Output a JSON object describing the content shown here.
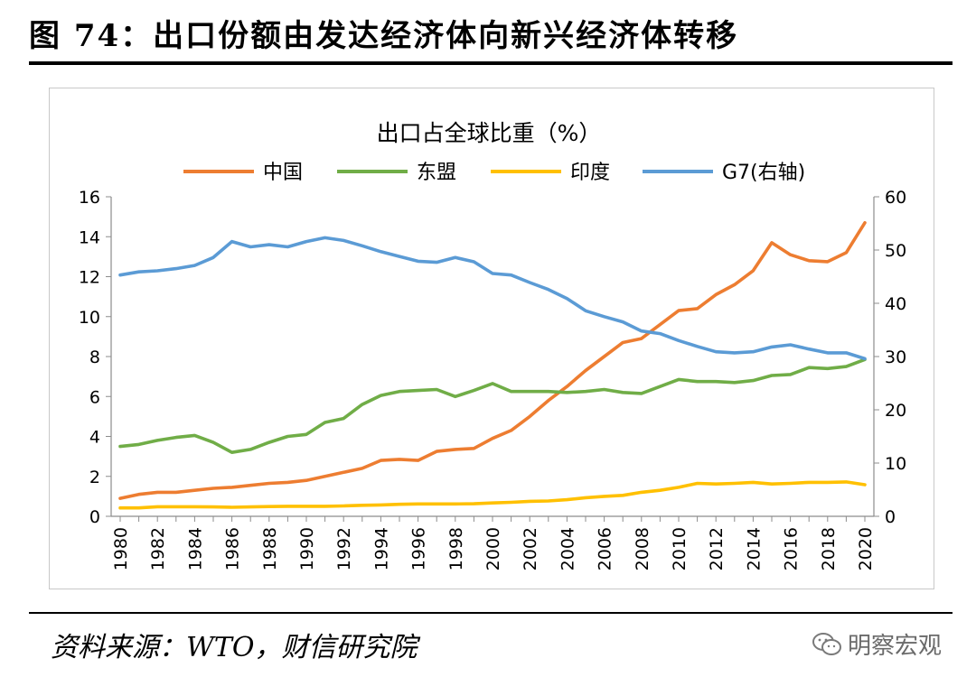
{
  "figure": {
    "title": "图 74：出口份额由发达经济体向新兴经济体转移",
    "source": "资料来源：WTO，财信研究院",
    "watermark": "明察宏观",
    "watermark_icon": "wechat-icon"
  },
  "chart_data": {
    "type": "line",
    "title": "出口占全球比重（%）",
    "legend_position": "top",
    "grid": false,
    "x": [
      1980,
      1981,
      1982,
      1983,
      1984,
      1985,
      1986,
      1987,
      1988,
      1989,
      1990,
      1991,
      1992,
      1993,
      1994,
      1995,
      1996,
      1997,
      1998,
      1999,
      2000,
      2001,
      2002,
      2003,
      2004,
      2005,
      2006,
      2007,
      2008,
      2009,
      2010,
      2011,
      2012,
      2013,
      2014,
      2015,
      2016,
      2017,
      2018,
      2019,
      2020
    ],
    "x_tick_labels": [
      "1980",
      "1982",
      "1984",
      "1986",
      "1988",
      "1990",
      "1992",
      "1994",
      "1996",
      "1998",
      "2000",
      "2002",
      "2004",
      "2006",
      "2008",
      "2010",
      "2012",
      "2014",
      "2016",
      "2018",
      "2020"
    ],
    "y_left": {
      "range": [
        0,
        16
      ],
      "ticks": [
        "0",
        "2",
        "4",
        "6",
        "8",
        "10",
        "12",
        "14",
        "16"
      ]
    },
    "y_right": {
      "range": [
        0,
        60
      ],
      "ticks": [
        "0",
        "10",
        "20",
        "30",
        "40",
        "50",
        "60"
      ]
    },
    "series": [
      {
        "name": "中国",
        "axis": "left",
        "color": "#ED7D31",
        "values": [
          0.9,
          1.1,
          1.2,
          1.2,
          1.3,
          1.4,
          1.45,
          1.55,
          1.65,
          1.7,
          1.8,
          2.0,
          2.2,
          2.4,
          2.8,
          2.85,
          2.8,
          3.25,
          3.35,
          3.4,
          3.9,
          4.3,
          5.0,
          5.8,
          6.5,
          7.3,
          8.0,
          8.7,
          8.9,
          9.6,
          10.3,
          10.4,
          11.1,
          11.6,
          12.3,
          13.7,
          13.1,
          12.8,
          12.75,
          13.2,
          14.7
        ]
      },
      {
        "name": "东盟",
        "axis": "left",
        "color": "#70AD47",
        "values": [
          3.5,
          3.6,
          3.8,
          3.95,
          4.05,
          3.7,
          3.2,
          3.35,
          3.7,
          4.0,
          4.1,
          4.7,
          4.9,
          5.6,
          6.05,
          6.25,
          6.3,
          6.35,
          6.0,
          6.3,
          6.65,
          6.25,
          6.25,
          6.25,
          6.2,
          6.25,
          6.35,
          6.2,
          6.15,
          6.5,
          6.85,
          6.75,
          6.75,
          6.7,
          6.8,
          7.05,
          7.1,
          7.45,
          7.4,
          7.5,
          7.85
        ]
      },
      {
        "name": "印度",
        "axis": "left",
        "color": "#FFC000",
        "values": [
          0.42,
          0.42,
          0.48,
          0.48,
          0.48,
          0.47,
          0.45,
          0.47,
          0.49,
          0.5,
          0.5,
          0.5,
          0.52,
          0.55,
          0.57,
          0.6,
          0.62,
          0.62,
          0.62,
          0.63,
          0.67,
          0.7,
          0.75,
          0.77,
          0.83,
          0.93,
          1.0,
          1.05,
          1.2,
          1.3,
          1.45,
          1.65,
          1.62,
          1.65,
          1.7,
          1.62,
          1.65,
          1.7,
          1.7,
          1.72,
          1.58
        ]
      },
      {
        "name": "G7(右轴)",
        "axis": "right",
        "color": "#5B9BD5",
        "values": [
          45.3,
          45.9,
          46.1,
          46.5,
          47.1,
          48.6,
          51.6,
          50.6,
          51.0,
          50.6,
          51.6,
          52.3,
          51.8,
          50.8,
          49.7,
          48.8,
          47.9,
          47.7,
          48.6,
          47.8,
          45.6,
          45.3,
          43.9,
          42.6,
          40.9,
          38.6,
          37.5,
          36.5,
          34.8,
          34.3,
          33.0,
          31.9,
          30.9,
          30.7,
          30.9,
          31.8,
          32.2,
          31.4,
          30.7,
          30.7,
          29.6
        ]
      }
    ]
  }
}
